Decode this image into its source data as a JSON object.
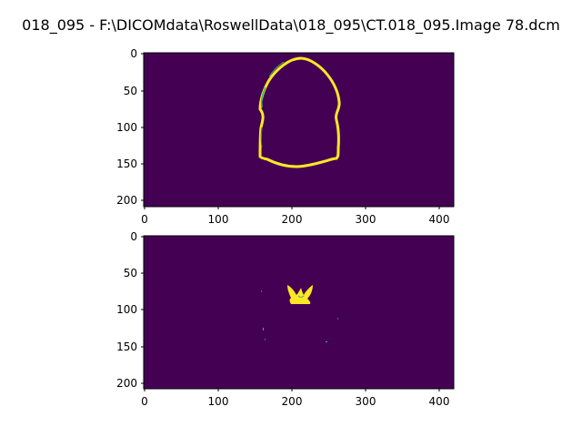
{
  "figure": {
    "title": "018_095 - F:\\DICOMdata\\RoswellData\\018_095\\CT.018_095.Image 78.dcm"
  },
  "colors": {
    "background": "#440154",
    "foreground": "#fde725",
    "edge_mid": "#35b779",
    "edge_blue": "#31688e"
  },
  "panels": [
    {
      "name": "top-panel",
      "image_content": "bone-ring mask",
      "xlim": [
        0,
        420
      ],
      "ylim": [
        208,
        0
      ],
      "x_ticks": [
        "0",
        "100",
        "200",
        "300",
        "400"
      ],
      "y_ticks": [
        "0",
        "50",
        "100",
        "150",
        "200"
      ]
    },
    {
      "name": "bottom-panel",
      "image_content": "central bright blob",
      "xlim": [
        0,
        420
      ],
      "ylim": [
        208,
        0
      ],
      "x_ticks": [
        "0",
        "100",
        "200",
        "300",
        "400"
      ],
      "y_ticks": [
        "0",
        "50",
        "100",
        "150",
        "200"
      ]
    }
  ]
}
